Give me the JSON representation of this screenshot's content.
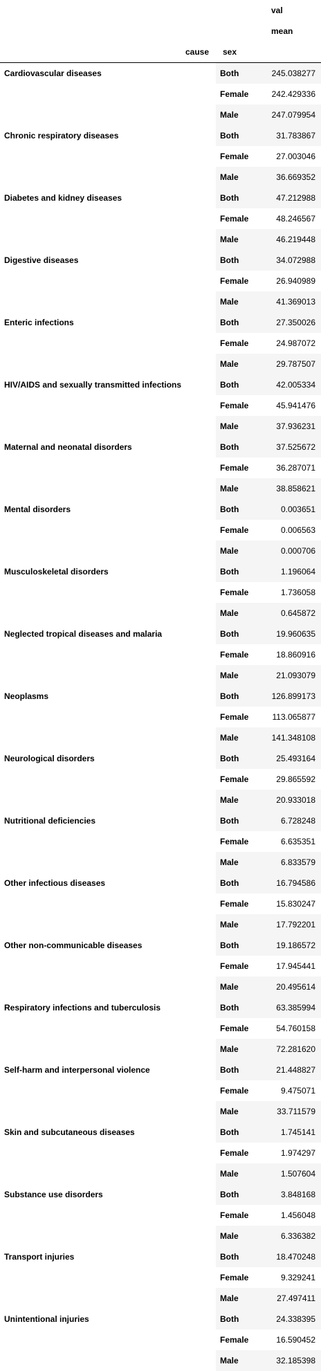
{
  "header": {
    "val_label": "val",
    "mean_label": "mean",
    "cause_label": "cause",
    "sex_label": "sex"
  },
  "rows": [
    {
      "cause": "Cardiovascular diseases",
      "values": [
        [
          "Both",
          "245.038277"
        ],
        [
          "Female",
          "242.429336"
        ],
        [
          "Male",
          "247.079954"
        ]
      ]
    },
    {
      "cause": "Chronic respiratory diseases",
      "values": [
        [
          "Both",
          "31.783867"
        ],
        [
          "Female",
          "27.003046"
        ],
        [
          "Male",
          "36.669352"
        ]
      ]
    },
    {
      "cause": "Diabetes and kidney diseases",
      "values": [
        [
          "Both",
          "47.212988"
        ],
        [
          "Female",
          "48.246567"
        ],
        [
          "Male",
          "46.219448"
        ]
      ]
    },
    {
      "cause": "Digestive diseases",
      "values": [
        [
          "Both",
          "34.072988"
        ],
        [
          "Female",
          "26.940989"
        ],
        [
          "Male",
          "41.369013"
        ]
      ]
    },
    {
      "cause": "Enteric infections",
      "values": [
        [
          "Both",
          "27.350026"
        ],
        [
          "Female",
          "24.987072"
        ],
        [
          "Male",
          "29.787507"
        ]
      ]
    },
    {
      "cause": "HIV/AIDS and sexually transmitted infections",
      "values": [
        [
          "Both",
          "42.005334"
        ],
        [
          "Female",
          "45.941476"
        ],
        [
          "Male",
          "37.936231"
        ]
      ]
    },
    {
      "cause": "Maternal and neonatal disorders",
      "values": [
        [
          "Both",
          "37.525672"
        ],
        [
          "Female",
          "36.287071"
        ],
        [
          "Male",
          "38.858621"
        ]
      ]
    },
    {
      "cause": "Mental disorders",
      "values": [
        [
          "Both",
          "0.003651"
        ],
        [
          "Female",
          "0.006563"
        ],
        [
          "Male",
          "0.000706"
        ]
      ]
    },
    {
      "cause": "Musculoskeletal disorders",
      "values": [
        [
          "Both",
          "1.196064"
        ],
        [
          "Female",
          "1.736058"
        ],
        [
          "Male",
          "0.645872"
        ]
      ]
    },
    {
      "cause": "Neglected tropical diseases and malaria",
      "values": [
        [
          "Both",
          "19.960635"
        ],
        [
          "Female",
          "18.860916"
        ],
        [
          "Male",
          "21.093079"
        ]
      ]
    },
    {
      "cause": "Neoplasms",
      "values": [
        [
          "Both",
          "126.899173"
        ],
        [
          "Female",
          "113.065877"
        ],
        [
          "Male",
          "141.348108"
        ]
      ]
    },
    {
      "cause": "Neurological disorders",
      "values": [
        [
          "Both",
          "25.493164"
        ],
        [
          "Female",
          "29.865592"
        ],
        [
          "Male",
          "20.933018"
        ]
      ]
    },
    {
      "cause": "Nutritional deficiencies",
      "values": [
        [
          "Both",
          "6.728248"
        ],
        [
          "Female",
          "6.635351"
        ],
        [
          "Male",
          "6.833579"
        ]
      ]
    },
    {
      "cause": "Other infectious diseases",
      "values": [
        [
          "Both",
          "16.794586"
        ],
        [
          "Female",
          "15.830247"
        ],
        [
          "Male",
          "17.792201"
        ]
      ]
    },
    {
      "cause": "Other non-communicable diseases",
      "values": [
        [
          "Both",
          "19.186572"
        ],
        [
          "Female",
          "17.945441"
        ],
        [
          "Male",
          "20.495614"
        ]
      ]
    },
    {
      "cause": "Respiratory infections and tuberculosis",
      "values": [
        [
          "Both",
          "63.385994"
        ],
        [
          "Female",
          "54.760158"
        ],
        [
          "Male",
          "72.281620"
        ]
      ]
    },
    {
      "cause": "Self-harm and interpersonal violence",
      "values": [
        [
          "Both",
          "21.448827"
        ],
        [
          "Female",
          "9.475071"
        ],
        [
          "Male",
          "33.711579"
        ]
      ]
    },
    {
      "cause": "Skin and subcutaneous diseases",
      "values": [
        [
          "Both",
          "1.745141"
        ],
        [
          "Female",
          "1.974297"
        ],
        [
          "Male",
          "1.507604"
        ]
      ]
    },
    {
      "cause": "Substance use disorders",
      "values": [
        [
          "Both",
          "3.848168"
        ],
        [
          "Female",
          "1.456048"
        ],
        [
          "Male",
          "6.336382"
        ]
      ]
    },
    {
      "cause": "Transport injuries",
      "values": [
        [
          "Both",
          "18.470248"
        ],
        [
          "Female",
          "9.329241"
        ],
        [
          "Male",
          "27.497411"
        ]
      ]
    },
    {
      "cause": "Unintentional injuries",
      "values": [
        [
          "Both",
          "24.338395"
        ],
        [
          "Female",
          "16.590452"
        ],
        [
          "Male",
          "32.185398"
        ]
      ]
    }
  ]
}
